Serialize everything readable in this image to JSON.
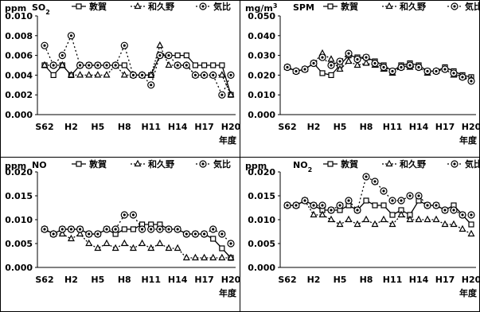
{
  "nendo_label": "年度",
  "legend_series": [
    "敦賀",
    "和久野",
    "気比"
  ],
  "x_tick_labels": [
    "S62",
    "H2",
    "H5",
    "H8",
    "H11",
    "H14",
    "H17",
    "H20"
  ],
  "chart_data": [
    {
      "type": "line",
      "unit": "ppm",
      "title": "SO2",
      "title_sub": "2",
      "ylim": [
        0,
        0.01
      ],
      "yticks": [
        "0.010",
        "0.008",
        "0.006",
        "0.004",
        "0.002",
        "0.000"
      ],
      "categories": [
        "S62",
        "S63",
        "H1",
        "H2",
        "H3",
        "H4",
        "H5",
        "H6",
        "H7",
        "H8",
        "H9",
        "H10",
        "H11",
        "H12",
        "H13",
        "H14",
        "H15",
        "H16",
        "H17",
        "H18",
        "H19",
        "H20"
      ],
      "series": [
        {
          "name": "敦賀",
          "values": [
            0.005,
            0.004,
            0.005,
            0.004,
            0.005,
            0.005,
            0.005,
            0.005,
            0.005,
            0.005,
            0.004,
            0.004,
            0.004,
            0.006,
            0.006,
            0.006,
            0.006,
            0.005,
            0.005,
            0.005,
            0.005,
            0.002
          ]
        },
        {
          "name": "和久野",
          "values": [
            0.005,
            0.005,
            0.005,
            0.004,
            0.004,
            0.004,
            0.004,
            0.004,
            0.005,
            0.004,
            0.004,
            0.004,
            0.004,
            0.007,
            0.005,
            0.005,
            0.005,
            0.004,
            0.004,
            0.004,
            0.004,
            0.002
          ]
        },
        {
          "name": "気比",
          "values": [
            0.007,
            0.005,
            0.006,
            0.008,
            0.005,
            0.005,
            0.005,
            0.005,
            0.005,
            0.007,
            0.004,
            0.004,
            0.003,
            0.006,
            0.006,
            0.005,
            0.005,
            0.004,
            0.004,
            0.004,
            0.002,
            0.004
          ]
        }
      ]
    },
    {
      "type": "line",
      "unit": "mg/m3",
      "unit_sup": "3",
      "title": "SPM",
      "ylim": [
        0,
        0.05
      ],
      "yticks": [
        "0.050",
        "0.040",
        "0.030",
        "0.020",
        "0.010",
        "0.000"
      ],
      "categories": [
        "S62",
        "S63",
        "H1",
        "H2",
        "H3",
        "H4",
        "H5",
        "H6",
        "H7",
        "H8",
        "H9",
        "H10",
        "H11",
        "H12",
        "H13",
        "H14",
        "H15",
        "H16",
        "H17",
        "H18",
        "H19",
        "H20"
      ],
      "series": [
        {
          "name": "敦賀",
          "values": [
            0.024,
            0.022,
            0.023,
            0.026,
            0.021,
            0.02,
            0.025,
            0.03,
            0.029,
            0.029,
            0.027,
            0.025,
            0.022,
            0.025,
            0.026,
            0.025,
            0.022,
            0.022,
            0.024,
            0.022,
            0.02,
            0.019
          ]
        },
        {
          "name": "和久野",
          "values": [
            0.024,
            0.022,
            0.023,
            0.026,
            0.031,
            0.028,
            0.023,
            0.027,
            0.025,
            0.026,
            0.025,
            0.023,
            0.021,
            0.024,
            0.024,
            0.024,
            0.021,
            0.022,
            0.023,
            0.02,
            0.019,
            0.018
          ]
        },
        {
          "name": "気比",
          "values": [
            0.024,
            0.022,
            0.023,
            0.026,
            0.029,
            0.025,
            0.027,
            0.031,
            0.028,
            0.029,
            0.026,
            0.024,
            0.022,
            0.024,
            0.025,
            0.024,
            0.022,
            0.022,
            0.023,
            0.021,
            0.019,
            0.017
          ]
        }
      ]
    },
    {
      "type": "line",
      "unit": "ppm",
      "title": "NO",
      "ylim": [
        0,
        0.02
      ],
      "yticks": [
        "0.020",
        "0.015",
        "0.010",
        "0.005",
        "0.000"
      ],
      "categories": [
        "S62",
        "S63",
        "H1",
        "H2",
        "H3",
        "H4",
        "H5",
        "H6",
        "H7",
        "H8",
        "H9",
        "H10",
        "H11",
        "H12",
        "H13",
        "H14",
        "H15",
        "H16",
        "H17",
        "H18",
        "H19",
        "H20"
      ],
      "series": [
        {
          "name": "敦賀",
          "values": [
            0.008,
            0.007,
            0.008,
            0.008,
            0.008,
            0.007,
            0.007,
            0.008,
            0.007,
            0.008,
            0.008,
            0.009,
            0.009,
            0.009,
            0.008,
            0.008,
            0.007,
            0.007,
            0.007,
            0.006,
            0.004,
            0.002
          ]
        },
        {
          "name": "和久野",
          "values": [
            0.008,
            0.007,
            0.007,
            0.006,
            0.007,
            0.005,
            0.004,
            0.005,
            0.004,
            0.005,
            0.004,
            0.005,
            0.004,
            0.005,
            0.004,
            0.004,
            0.002,
            0.002,
            0.002,
            0.002,
            0.002,
            0.002
          ]
        },
        {
          "name": "気比",
          "values": [
            0.008,
            0.007,
            0.008,
            0.008,
            0.008,
            0.007,
            0.007,
            0.008,
            0.008,
            0.011,
            0.011,
            0.008,
            0.008,
            0.008,
            0.008,
            0.008,
            0.007,
            0.007,
            0.007,
            0.008,
            0.007,
            0.005
          ]
        }
      ]
    },
    {
      "type": "line",
      "unit": "ppm",
      "title": "NO2",
      "title_sub": "2",
      "ylim": [
        0,
        0.02
      ],
      "yticks": [
        "0.020",
        "0.015",
        "0.010",
        "0.005",
        "0.000"
      ],
      "categories": [
        "S62",
        "S63",
        "H1",
        "H2",
        "H3",
        "H4",
        "H5",
        "H6",
        "H7",
        "H8",
        "H9",
        "H10",
        "H11",
        "H12",
        "H13",
        "H14",
        "H15",
        "H16",
        "H17",
        "H18",
        "H19",
        "H20"
      ],
      "series": [
        {
          "name": "敦賀",
          "values": [
            0.013,
            0.013,
            0.014,
            0.013,
            0.012,
            0.012,
            0.012,
            0.013,
            0.012,
            0.014,
            0.013,
            0.013,
            0.011,
            0.012,
            0.011,
            0.014,
            0.013,
            0.013,
            0.012,
            0.013,
            0.011,
            0.009
          ]
        },
        {
          "name": "和久野",
          "values": [
            0.013,
            0.013,
            0.014,
            0.011,
            0.011,
            0.01,
            0.009,
            0.01,
            0.009,
            0.01,
            0.009,
            0.01,
            0.009,
            0.011,
            0.01,
            0.01,
            0.01,
            0.01,
            0.009,
            0.009,
            0.008,
            0.007
          ]
        },
        {
          "name": "気比",
          "values": [
            0.013,
            0.013,
            0.014,
            0.013,
            0.013,
            0.012,
            0.013,
            0.014,
            0.012,
            0.019,
            0.018,
            0.016,
            0.014,
            0.014,
            0.015,
            0.015,
            0.013,
            0.013,
            0.012,
            0.012,
            0.011,
            0.011
          ]
        }
      ]
    }
  ]
}
